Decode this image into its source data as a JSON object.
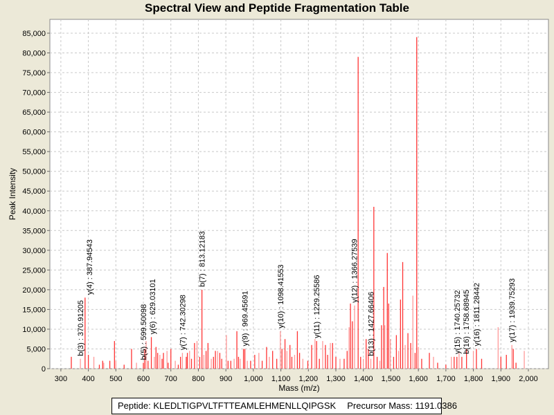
{
  "chart_data": {
    "type": "bar",
    "title": "Spectral View and Peptide Fragmentation Table",
    "xlabel": "Mass (m/z)",
    "ylabel": "Peak Intensity",
    "xlim": [
      260,
      2073
    ],
    "ylim": [
      0,
      88500
    ],
    "grid": true,
    "xticks": [
      300,
      400,
      500,
      600,
      700,
      800,
      900,
      1000,
      1100,
      1200,
      1300,
      1400,
      1500,
      1600,
      1700,
      1800,
      1900,
      2000
    ],
    "xtick_labels": [
      "300",
      "400",
      "500",
      "600",
      "700",
      "800",
      "900",
      "1,000",
      "1,100",
      "1,200",
      "1,300",
      "1,400",
      "1,500",
      "1,600",
      "1,700",
      "1,800",
      "1,900",
      "2,000"
    ],
    "yticks": [
      0,
      5000,
      10000,
      15000,
      20000,
      25000,
      30000,
      35000,
      40000,
      45000,
      50000,
      55000,
      60000,
      65000,
      70000,
      75000,
      80000,
      85000
    ],
    "ytick_labels": [
      "0",
      "5,000",
      "10,000",
      "15,000",
      "20,000",
      "25,000",
      "30,000",
      "35,000",
      "40,000",
      "45,000",
      "50,000",
      "55,000",
      "60,000",
      "65,000",
      "70,000",
      "75,000",
      "80,000",
      "85,000"
    ],
    "peaks": [
      [
        338,
        3000
      ],
      [
        371,
        2500
      ],
      [
        388,
        18000
      ],
      [
        400,
        3500
      ],
      [
        420,
        3000
      ],
      [
        440,
        1000
      ],
      [
        452,
        2000
      ],
      [
        456,
        1500
      ],
      [
        478,
        2000
      ],
      [
        495,
        7000
      ],
      [
        500,
        2000
      ],
      [
        530,
        1000
      ],
      [
        557,
        5000
      ],
      [
        575,
        1500
      ],
      [
        600,
        1500
      ],
      [
        605,
        5000
      ],
      [
        610,
        7000
      ],
      [
        617,
        2000
      ],
      [
        629,
        8000
      ],
      [
        640,
        3000
      ],
      [
        646,
        5500
      ],
      [
        652,
        4000
      ],
      [
        660,
        3500
      ],
      [
        668,
        2500
      ],
      [
        673,
        4000
      ],
      [
        686,
        4500
      ],
      [
        690,
        1500
      ],
      [
        700,
        5000
      ],
      [
        716,
        2000
      ],
      [
        727,
        1000
      ],
      [
        735,
        3000
      ],
      [
        742,
        4000
      ],
      [
        756,
        3000
      ],
      [
        760,
        4000
      ],
      [
        768,
        4500
      ],
      [
        775,
        2500
      ],
      [
        786,
        6500
      ],
      [
        795,
        7000
      ],
      [
        805,
        3000
      ],
      [
        813,
        20000
      ],
      [
        820,
        3500
      ],
      [
        828,
        4500
      ],
      [
        835,
        6500
      ],
      [
        847,
        2500
      ],
      [
        855,
        3000
      ],
      [
        862,
        4500
      ],
      [
        870,
        4500
      ],
      [
        878,
        4000
      ],
      [
        885,
        2500
      ],
      [
        902,
        8500
      ],
      [
        908,
        2000
      ],
      [
        918,
        2000
      ],
      [
        930,
        2500
      ],
      [
        940,
        9500
      ],
      [
        946,
        3000
      ],
      [
        952,
        2500
      ],
      [
        964,
        5000
      ],
      [
        969,
        5000
      ],
      [
        978,
        2000
      ],
      [
        990,
        2000
      ],
      [
        1005,
        3500
      ],
      [
        1020,
        4000
      ],
      [
        1032,
        2000
      ],
      [
        1048,
        5500
      ],
      [
        1058,
        3000
      ],
      [
        1070,
        4500
      ],
      [
        1085,
        2500
      ],
      [
        1098,
        9500
      ],
      [
        1104,
        5000
      ],
      [
        1115,
        7500
      ],
      [
        1122,
        4500
      ],
      [
        1133,
        6000
      ],
      [
        1140,
        3000
      ],
      [
        1150,
        3500
      ],
      [
        1160,
        9500
      ],
      [
        1168,
        4000
      ],
      [
        1180,
        2500
      ],
      [
        1198,
        2000
      ],
      [
        1212,
        6000
      ],
      [
        1224,
        7500
      ],
      [
        1230,
        7000
      ],
      [
        1240,
        2500
      ],
      [
        1252,
        7000
      ],
      [
        1262,
        6000
      ],
      [
        1270,
        3500
      ],
      [
        1280,
        6500
      ],
      [
        1288,
        6500
      ],
      [
        1300,
        3000
      ],
      [
        1315,
        2500
      ],
      [
        1330,
        2500
      ],
      [
        1341,
        4500
      ],
      [
        1348,
        10500
      ],
      [
        1353,
        16500
      ],
      [
        1360,
        12000
      ],
      [
        1368,
        16000
      ],
      [
        1381,
        79000
      ],
      [
        1390,
        3000
      ],
      [
        1400,
        2500
      ],
      [
        1410,
        7500
      ],
      [
        1418,
        5000
      ],
      [
        1427,
        2500
      ],
      [
        1438,
        41000
      ],
      [
        1450,
        3000
      ],
      [
        1460,
        2000
      ],
      [
        1466,
        11000
      ],
      [
        1474,
        20700
      ],
      [
        1478,
        11000
      ],
      [
        1487,
        29300
      ],
      [
        1492,
        16500
      ],
      [
        1498,
        7500
      ],
      [
        1510,
        3000
      ],
      [
        1520,
        8500
      ],
      [
        1528,
        4500
      ],
      [
        1535,
        17500
      ],
      [
        1543,
        27000
      ],
      [
        1552,
        6000
      ],
      [
        1562,
        9000
      ],
      [
        1572,
        6500
      ],
      [
        1580,
        18500
      ],
      [
        1588,
        4000
      ],
      [
        1594,
        84000
      ],
      [
        1600,
        5500
      ],
      [
        1612,
        2500
      ],
      [
        1640,
        4000
      ],
      [
        1655,
        3000
      ],
      [
        1670,
        1500
      ],
      [
        1700,
        1000
      ],
      [
        1720,
        3000
      ],
      [
        1730,
        3000
      ],
      [
        1740,
        3000
      ],
      [
        1748,
        4000
      ],
      [
        1758,
        3000
      ],
      [
        1775,
        5000
      ],
      [
        1800,
        4500
      ],
      [
        1811,
        5000
      ],
      [
        1830,
        2500
      ],
      [
        1890,
        10500
      ],
      [
        1900,
        3000
      ],
      [
        1920,
        3500
      ],
      [
        1940,
        6000
      ],
      [
        1945,
        5000
      ],
      [
        1955,
        1500
      ],
      [
        1985,
        4500
      ]
    ],
    "annotations": [
      {
        "mz": 370.91205,
        "intensity": 2500,
        "label": "b(3) : 370.91205"
      },
      {
        "mz": 387.94543,
        "intensity": 18000,
        "label": "y(4) : 387.94543"
      },
      {
        "mz": 599.50098,
        "intensity": 1500,
        "label": "b(5) : 599.50098"
      },
      {
        "mz": 629.03101,
        "intensity": 8000,
        "label": "y(6) : 629.03101"
      },
      {
        "mz": 742.30298,
        "intensity": 4000,
        "label": "y(7) : 742.30298"
      },
      {
        "mz": 813.12183,
        "intensity": 20000,
        "label": "b(7) : 813.12183"
      },
      {
        "mz": 969.45691,
        "intensity": 5000,
        "label": "y(9) : 969.45691"
      },
      {
        "mz": 1098.41553,
        "intensity": 9500,
        "label": "y(10) : 1098.41553"
      },
      {
        "mz": 1229.25586,
        "intensity": 7000,
        "label": "y(11) : 1229.25586"
      },
      {
        "mz": 1366.27539,
        "intensity": 16000,
        "label": "y(12) : 1366.27539"
      },
      {
        "mz": 1427.66406,
        "intensity": 2500,
        "label": "b(13) : 1427.66406"
      },
      {
        "mz": 1740.25732,
        "intensity": 3000,
        "label": "y(15) : 1740.25732"
      },
      {
        "mz": 1758.68945,
        "intensity": 3000,
        "label": "b(16) : 1758.68945"
      },
      {
        "mz": 1811.28442,
        "intensity": 5000,
        "label": "y(16) : 1811.28442"
      },
      {
        "mz": 1939.75293,
        "intensity": 6000,
        "label": "y(17) : 1939.75293"
      }
    ],
    "colors": {
      "peak": "#ff3333",
      "peak_light": "#ff9999",
      "grid": "#c8c8c8"
    }
  },
  "footer": {
    "peptide": "Peptide: KLEDLTIGPVLTFTTEAMLEHMENLLQIPGSK",
    "precursor": "Precursor Mass: 1191.0386"
  }
}
